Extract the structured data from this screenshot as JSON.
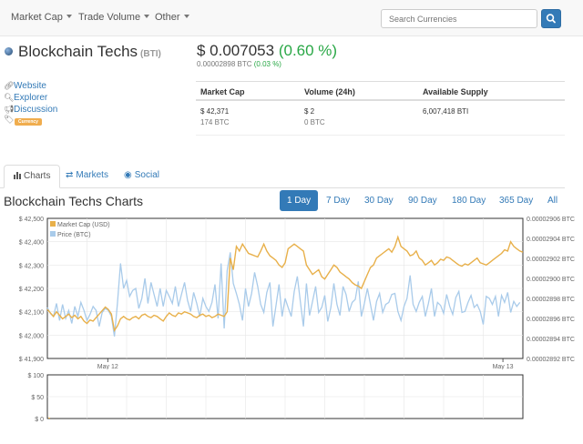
{
  "nav": {
    "items": [
      "Market Cap",
      "Trade Volume",
      "Other"
    ],
    "search_placeholder": "Search Currencies"
  },
  "coin": {
    "name": "Blockchain Techs",
    "symbol": "(BTI)",
    "price_usd": "$ 0.007053",
    "change_usd": "(0.60 %)",
    "price_btc": "0.00002898 BTC",
    "change_btc": "(0.03 %)"
  },
  "links": {
    "website": "Website",
    "explorer": "Explorer",
    "discussion": "Discussion",
    "tag": "Currency"
  },
  "stats": {
    "market_cap_label": "Market Cap",
    "market_cap_usd": "$ 42,371",
    "market_cap_btc": "174 BTC",
    "volume_label": "Volume (24h)",
    "volume_usd": "$ 2",
    "volume_btc": "0 BTC",
    "supply_label": "Available Supply",
    "supply_value": "6,007,418 BTI"
  },
  "tabs": {
    "charts": "Charts",
    "markets": "Markets",
    "social": "Social"
  },
  "charts_section": {
    "title": "Blockchain Techs Charts",
    "ranges": [
      "1 Day",
      "7 Day",
      "30 Day",
      "90 Day",
      "180 Day",
      "365 Day",
      "All"
    ],
    "active_range": "1 Day"
  },
  "colors": {
    "market_cap": "#e8b04a",
    "price": "#a9cbea",
    "accent": "#337ab7",
    "positive": "#28a745"
  },
  "chart_data": [
    {
      "type": "line",
      "x_ticks": [
        "May 12",
        "May 13"
      ],
      "y_left_ticks": [
        "$ 42,500",
        "$ 42,400",
        "$ 42,300",
        "$ 42,200",
        "$ 42,100",
        "$ 42,000",
        "$ 41,900"
      ],
      "y_right_ticks": [
        "0.00002906 BTC",
        "0.00002904 BTC",
        "0.00002902 BTC",
        "0.00002900 BTC",
        "0.00002898 BTC",
        "0.00002896 BTC",
        "0.00002894 BTC",
        "0.00002892 BTC"
      ],
      "ylim_left": [
        41900,
        42500
      ],
      "ylim_right": [
        2.892e-05,
        2.906e-05
      ],
      "grid": true,
      "legend_position": "top-left",
      "series": [
        {
          "name": "Market Cap (USD)",
          "axis": "left",
          "values": [
            42110,
            42095,
            42080,
            42100,
            42085,
            42070,
            42080,
            42090,
            42075,
            42085,
            42070,
            42080,
            42060,
            42050,
            42065,
            42060,
            42075,
            42090,
            42105,
            42120,
            42110,
            42090,
            42020,
            42040,
            42070,
            42080,
            42070,
            42065,
            42075,
            42080,
            42070,
            42085,
            42090,
            42080,
            42075,
            42085,
            42080,
            42070,
            42060,
            42080,
            42095,
            42085,
            42080,
            42095,
            42090,
            42100,
            42095,
            42090,
            42080,
            42075,
            42085,
            42090,
            42080,
            42085,
            42075,
            42080,
            42090,
            42085,
            42080,
            42100,
            42330,
            42280,
            42380,
            42360,
            42390,
            42370,
            42350,
            42345,
            42340,
            42335,
            42360,
            42390,
            42360,
            42340,
            42330,
            42320,
            42300,
            42290,
            42310,
            42370,
            42380,
            42390,
            42380,
            42370,
            42360,
            42300,
            42280,
            42260,
            42270,
            42280,
            42250,
            42240,
            42260,
            42280,
            42300,
            42290,
            42270,
            42260,
            42250,
            42240,
            42225,
            42215,
            42210,
            42200,
            42230,
            42260,
            42290,
            42300,
            42330,
            42340,
            42350,
            42360,
            42370,
            42355,
            42380,
            42420,
            42380,
            42370,
            42360,
            42340,
            42345,
            42360,
            42330,
            42320,
            42300,
            42310,
            42320,
            42300,
            42310,
            42325,
            42320,
            42335,
            42330,
            42320,
            42310,
            42300,
            42295,
            42305,
            42300,
            42310,
            42320,
            42330,
            42310,
            42305,
            42300,
            42310,
            42320,
            42330,
            42340,
            42350,
            42365,
            42360,
            42400,
            42380,
            42370,
            42360,
            42355
          ]
        },
        {
          "name": "Price (BTC)",
          "axis": "right",
          "values": [
            2.8971e-05,
            2.8965e-05,
            2.8962e-05,
            2.8975e-05,
            2.8958e-05,
            2.8974e-05,
            2.896e-05,
            2.8968e-05,
            2.8955e-05,
            2.8972e-05,
            2.8962e-05,
            2.8976e-05,
            2.8968e-05,
            2.8958e-05,
            2.8964e-05,
            2.8972e-05,
            2.8968e-05,
            2.8952e-05,
            2.8966e-05,
            2.897e-05,
            2.8968e-05,
            2.8962e-05,
            2.8942e-05,
            2.8976e-05,
            2.9015e-05,
            2.899e-05,
            2.8998e-05,
            2.8982e-05,
            2.8988e-05,
            2.899e-05,
            2.897e-05,
            2.898e-05,
            2.9e-05,
            2.8975e-05,
            2.8996e-05,
            2.8984e-05,
            2.8972e-05,
            2.899e-05,
            2.8972e-05,
            2.8988e-05,
            2.8982e-05,
            2.8975e-05,
            2.8992e-05,
            2.8972e-05,
            2.8984e-05,
            2.8996e-05,
            2.8978e-05,
            2.8967e-05,
            2.8986e-05,
            2.8975e-05,
            2.8962e-05,
            2.898e-05,
            2.8972e-05,
            2.8967e-05,
            2.8976e-05,
            2.8994e-05,
            2.896e-05,
            2.9015e-05,
            2.895e-05,
            2.9008e-05,
            2.9026e-05,
            2.8995e-05,
            2.8985e-05,
            2.8974e-05,
            2.8958e-05,
            2.899e-05,
            2.8972e-05,
            2.8985e-05,
            2.9006e-05,
            2.8992e-05,
            2.8974e-05,
            2.8966e-05,
            2.8986e-05,
            2.8996e-05,
            2.8952e-05,
            2.8973e-05,
            2.8994e-05,
            2.8962e-05,
            2.898e-05,
            2.8971e-05,
            2.8962e-05,
            2.8987e-05,
            2.9002e-05,
            2.8977e-05,
            2.8952e-05,
            2.8995e-05,
            2.8963e-05,
            2.8977e-05,
            2.8992e-05,
            2.8966e-05,
            2.8971e-05,
            2.8983e-05,
            2.8957e-05,
            2.8971e-05,
            2.8995e-05,
            2.8974e-05,
            2.8963e-05,
            2.8992e-05,
            2.8984e-05,
            2.8967e-05,
            2.8976e-05,
            2.8979e-05,
            2.8997e-05,
            2.8962e-05,
            2.8975e-05,
            2.899e-05,
            2.8974e-05,
            2.8958e-05,
            2.8977e-05,
            2.8985e-05,
            2.8966e-05,
            2.8974e-05,
            2.8976e-05,
            2.8984e-05,
            2.8985e-05,
            2.8967e-05,
            2.8958e-05,
            2.8972e-05,
            2.898e-05,
            2.9003e-05,
            2.8974e-05,
            2.8967e-05,
            2.8976e-05,
            2.8982e-05,
            2.8962e-05,
            2.8975e-05,
            2.899e-05,
            2.8962e-05,
            2.8976e-05,
            2.8973e-05,
            2.8965e-05,
            2.8984e-05,
            2.8972e-05,
            2.8964e-05,
            2.8981e-05,
            2.8987e-05,
            2.8966e-05,
            2.8967e-05,
            2.8976e-05,
            2.8983e-05,
            2.8971e-05,
            2.8974e-05,
            2.8967e-05,
            2.8954e-05,
            2.8982e-05,
            2.898e-05,
            2.8974e-05,
            2.8982e-05,
            2.8962e-05,
            2.8983e-05,
            2.8976e-05,
            2.8986e-05,
            2.8966e-05,
            2.8977e-05,
            2.8972e-05,
            2.8976e-05
          ]
        }
      ]
    },
    {
      "type": "bar",
      "y_ticks": [
        "$ 100",
        "$ 50",
        "$ 0"
      ],
      "ylim": [
        0,
        100
      ],
      "grid": true,
      "values": [
        2
      ]
    }
  ]
}
